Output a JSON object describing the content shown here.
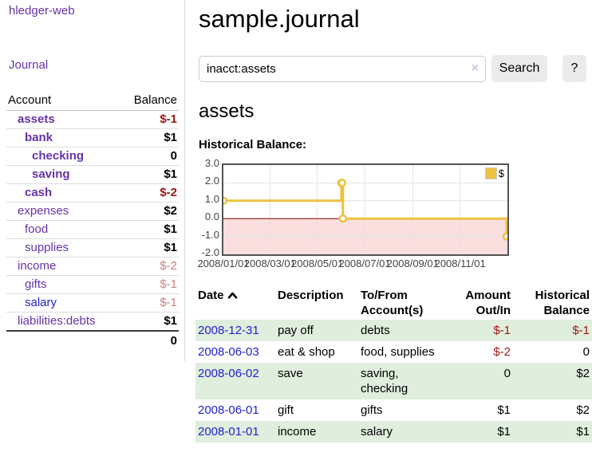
{
  "app": {
    "brand": "hledger-web"
  },
  "nav": {
    "journal": "Journal"
  },
  "sidebar": {
    "headers": {
      "account": "Account",
      "balance": "Balance"
    },
    "accounts": [
      {
        "name": "assets",
        "balance": "$-1"
      },
      {
        "name": "bank",
        "balance": "$1"
      },
      {
        "name": "checking",
        "balance": "0"
      },
      {
        "name": "saving",
        "balance": "$1"
      },
      {
        "name": "cash",
        "balance": "$-2"
      },
      {
        "name": "expenses",
        "balance": "$2"
      },
      {
        "name": "food",
        "balance": "$1"
      },
      {
        "name": "supplies",
        "balance": "$1"
      },
      {
        "name": "income",
        "balance": "$-2"
      },
      {
        "name": "gifts",
        "balance": "$-1"
      },
      {
        "name": "salary",
        "balance": "$-1"
      },
      {
        "name": "liabilities:debts",
        "balance": "$1"
      }
    ],
    "total_balance": "0"
  },
  "page": {
    "title": "sample.journal",
    "account_title": "assets",
    "chart_heading": "Historical Balance:"
  },
  "search": {
    "value": "inacct:assets",
    "clear_icon": "×",
    "search_button": "Search",
    "help_button": "?"
  },
  "chart_data": {
    "type": "line",
    "step": true,
    "title": "Historical Balance:",
    "series": [
      {
        "name": "$",
        "color": "#edc240",
        "points": [
          {
            "x": "2008-01-01",
            "y": 1
          },
          {
            "x": "2008-06-01",
            "y": 2
          },
          {
            "x": "2008-06-02",
            "y": 2
          },
          {
            "x": "2008-06-03",
            "y": 0
          },
          {
            "x": "2008-12-31",
            "y": -1
          }
        ]
      }
    ],
    "xlim": [
      "2008-01-01",
      "2009-01-01"
    ],
    "ylim": [
      -2,
      3
    ],
    "yticks": [
      "3.0",
      "2.0",
      "1.0",
      "0.0",
      "-1.0",
      "-2.0"
    ],
    "xticks": [
      {
        "label": "2008/01/01",
        "date": "2008-01-01"
      },
      {
        "label": "2008/03/01",
        "date": "2008-03-01"
      },
      {
        "label": "2008/05/01",
        "date": "2008-05-01"
      },
      {
        "label": "2008/07/01",
        "date": "2008-07-01"
      },
      {
        "label": "2008/09/01",
        "date": "2008-09-01"
      },
      {
        "label": "2008/11/01",
        "date": "2008-11-01"
      }
    ],
    "legend_position": "top-right",
    "grid": true,
    "grid_color": "#e3e3e3",
    "border_color": "#545454",
    "negative_region_color": "#fbdede",
    "zero_line_color": "#8b0000"
  },
  "register": {
    "columns": [
      "Date",
      "Description",
      "To/From Account(s)",
      "Amount Out/In",
      "Historical Balance"
    ],
    "sort": {
      "column": "Date",
      "direction": "ascending"
    },
    "rows": [
      {
        "date": "2008-12-31",
        "description": "pay off",
        "accounts": "debts",
        "amount": "$-1",
        "balance": "$-1"
      },
      {
        "date": "2008-06-03",
        "description": "eat & shop",
        "accounts": "food, supplies",
        "amount": "$-2",
        "balance": "0"
      },
      {
        "date": "2008-06-02",
        "description": "save",
        "accounts": "saving, checking",
        "amount": "0",
        "balance": "$2"
      },
      {
        "date": "2008-06-01",
        "description": "gift",
        "accounts": "gifts",
        "amount": "$1",
        "balance": "$2"
      },
      {
        "date": "2008-01-01",
        "description": "income",
        "accounts": "salary",
        "amount": "$1",
        "balance": "$1"
      }
    ]
  },
  "colors": {
    "link_purple": "#6632a8",
    "link_blue": "#2222cc",
    "negative_strong": "#9e1414",
    "negative_soft": "#c98181",
    "row_shade_green": "#dfeedd",
    "series_yellow": "#edc240"
  }
}
